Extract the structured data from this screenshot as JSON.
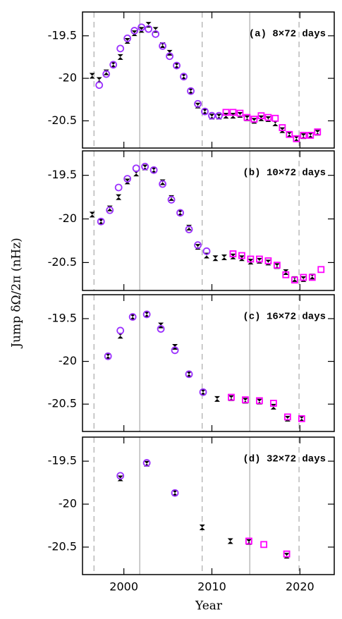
{
  "ylabel": "Jump δΩ/2π (nHz)",
  "xlabel": "Year",
  "chart_data": [
    {
      "type": "scatter",
      "annotation": "(a) 8×72 days",
      "xlim": [
        1995.3,
        2023.9
      ],
      "ylim": [
        -20.82,
        -19.22
      ],
      "xticks": [
        2000,
        2010,
        2020
      ],
      "yticks": [
        -19.5,
        -20,
        -20.5
      ],
      "reference_lines": [
        {
          "x": 1996.6,
          "style": "dashed"
        },
        {
          "x": 2001.8,
          "style": "solid"
        },
        {
          "x": 2008.9,
          "style": "dashed"
        },
        {
          "x": 2014.3,
          "style": "solid"
        },
        {
          "x": 2019.9,
          "style": "dashed"
        }
      ],
      "series": [
        {
          "color": "#000000",
          "marker": "hourglass",
          "x": [
            1996.4,
            1997.2,
            1998.0,
            1998.8,
            1999.6,
            2000.4,
            2001.2,
            2002.0,
            2002.8,
            2003.6,
            2004.4,
            2005.2,
            2006.0,
            2006.8,
            2007.6,
            2008.4,
            2009.2,
            2010.0,
            2010.8,
            2011.6,
            2012.4,
            2013.2,
            2014.0,
            2014.8,
            2015.6,
            2016.4,
            2017.2,
            2018.0,
            2018.8,
            2019.6,
            2020.4,
            2021.2,
            2022.0
          ],
          "values": [
            -19.97,
            -20.02,
            -19.93,
            -19.84,
            -19.75,
            -19.56,
            -19.47,
            -19.43,
            -19.37,
            -19.43,
            -19.61,
            -19.7,
            -19.85,
            -19.98,
            -20.15,
            -20.32,
            -20.39,
            -20.45,
            -20.45,
            -20.44,
            -20.44,
            -20.43,
            -20.47,
            -20.5,
            -20.47,
            -20.48,
            -20.53,
            -20.61,
            -20.66,
            -20.71,
            -20.68,
            -20.67,
            -20.64
          ]
        },
        {
          "color": "#9b30ff",
          "marker": "circle",
          "x": [
            1997.2,
            1998.0,
            1998.8,
            1999.6,
            2000.4,
            2001.2,
            2002.0,
            2002.8,
            2003.6,
            2004.4,
            2005.2,
            2006.0,
            2006.8,
            2007.6,
            2008.4,
            2009.2,
            2010.0,
            2010.8
          ],
          "values": [
            -20.08,
            -19.95,
            -19.84,
            -19.65,
            -19.53,
            -19.44,
            -19.4,
            -19.42,
            -19.48,
            -19.62,
            -19.74,
            -19.85,
            -19.98,
            -20.15,
            -20.3,
            -20.39,
            -20.44,
            -20.44
          ]
        },
        {
          "color": "#ff00ff",
          "marker": "square",
          "x": [
            2011.6,
            2012.4,
            2013.2,
            2014.0,
            2014.8,
            2015.6,
            2016.4,
            2017.2,
            2018.0,
            2018.8,
            2019.6,
            2020.4,
            2021.2,
            2022.0
          ],
          "values": [
            -20.4,
            -20.4,
            -20.41,
            -20.46,
            -20.48,
            -20.44,
            -20.46,
            -20.47,
            -20.58,
            -20.66,
            -20.71,
            -20.67,
            -20.67,
            -20.63
          ]
        }
      ]
    },
    {
      "type": "scatter",
      "annotation": "(b) 10×72 days",
      "xlim": [
        1995.3,
        2023.9
      ],
      "ylim": [
        -20.82,
        -19.22
      ],
      "xticks": [
        2000,
        2010,
        2020
      ],
      "yticks": [
        -19.5,
        -20,
        -20.5
      ],
      "reference_lines": [
        {
          "x": 1996.6,
          "style": "dashed"
        },
        {
          "x": 2001.8,
          "style": "solid"
        },
        {
          "x": 2008.9,
          "style": "dashed"
        },
        {
          "x": 2014.3,
          "style": "solid"
        },
        {
          "x": 2019.9,
          "style": "dashed"
        }
      ],
      "series": [
        {
          "color": "#000000",
          "marker": "hourglass",
          "x": [
            1996.4,
            1997.4,
            1998.4,
            1999.4,
            2000.4,
            2001.4,
            2002.4,
            2003.4,
            2004.4,
            2005.4,
            2006.4,
            2007.4,
            2008.4,
            2009.4,
            2010.4,
            2011.4,
            2012.4,
            2013.4,
            2014.4,
            2015.4,
            2016.4,
            2017.4,
            2018.4,
            2019.4,
            2020.4,
            2021.4
          ],
          "values": [
            -19.95,
            -20.03,
            -19.88,
            -19.75,
            -19.57,
            -19.48,
            -19.41,
            -19.44,
            -19.58,
            -19.76,
            -19.93,
            -20.1,
            -20.32,
            -20.42,
            -20.45,
            -20.44,
            -20.43,
            -20.45,
            -20.49,
            -20.48,
            -20.5,
            -20.54,
            -20.61,
            -20.69,
            -20.69,
            -20.66
          ]
        },
        {
          "color": "#9b30ff",
          "marker": "circle",
          "x": [
            1997.4,
            1998.4,
            1999.4,
            2000.4,
            2001.4,
            2002.4,
            2003.4,
            2004.4,
            2005.4,
            2006.4,
            2007.4,
            2008.4,
            2009.4
          ],
          "values": [
            -20.03,
            -19.9,
            -19.64,
            -19.54,
            -19.42,
            -19.4,
            -19.44,
            -19.6,
            -19.78,
            -19.93,
            -20.12,
            -20.3,
            -20.37
          ]
        },
        {
          "color": "#ff00ff",
          "marker": "square",
          "x": [
            2012.4,
            2013.4,
            2014.4,
            2015.4,
            2016.4,
            2017.4,
            2018.4,
            2019.4,
            2020.4,
            2021.4,
            2022.4
          ],
          "values": [
            -20.4,
            -20.42,
            -20.46,
            -20.46,
            -20.48,
            -20.53,
            -20.64,
            -20.7,
            -20.67,
            -20.67,
            -20.58
          ]
        }
      ]
    },
    {
      "type": "scatter",
      "annotation": "(c) 16×72 days",
      "xlim": [
        1995.3,
        2023.9
      ],
      "ylim": [
        -20.82,
        -19.22
      ],
      "xticks": [
        2000,
        2010,
        2020
      ],
      "yticks": [
        -19.5,
        -20,
        -20.5
      ],
      "reference_lines": [
        {
          "x": 1996.6,
          "style": "dashed"
        },
        {
          "x": 2001.8,
          "style": "solid"
        },
        {
          "x": 2008.9,
          "style": "dashed"
        },
        {
          "x": 2014.3,
          "style": "solid"
        },
        {
          "x": 2019.9,
          "style": "dashed"
        }
      ],
      "series": [
        {
          "color": "#000000",
          "marker": "hourglass",
          "x": [
            1998.2,
            1999.6,
            2001.0,
            2002.6,
            2004.2,
            2005.8,
            2007.4,
            2009.0,
            2010.6,
            2012.2,
            2013.8,
            2015.4,
            2017.0,
            2018.6,
            2020.2
          ],
          "values": [
            -19.94,
            -19.7,
            -19.48,
            -19.45,
            -19.58,
            -19.83,
            -20.15,
            -20.36,
            -20.44,
            -20.43,
            -20.46,
            -20.47,
            -20.53,
            -20.67,
            -20.67
          ]
        },
        {
          "color": "#9b30ff",
          "marker": "circle",
          "x": [
            1998.2,
            1999.6,
            2001.0,
            2002.6,
            2004.2,
            2005.8,
            2007.4,
            2009.0
          ],
          "values": [
            -19.94,
            -19.64,
            -19.48,
            -19.45,
            -19.62,
            -19.87,
            -20.15,
            -20.36
          ]
        },
        {
          "color": "#ff00ff",
          "marker": "square",
          "x": [
            2012.2,
            2013.8,
            2015.4,
            2017.0,
            2018.6,
            2020.2
          ],
          "values": [
            -20.42,
            -20.45,
            -20.46,
            -20.49,
            -20.65,
            -20.67
          ]
        }
      ]
    },
    {
      "type": "scatter",
      "annotation": "(d) 32×72 days",
      "xlim": [
        1995.3,
        2023.9
      ],
      "ylim": [
        -20.82,
        -19.22
      ],
      "xticks": [
        2000,
        2010,
        2020
      ],
      "yticks": [
        -19.5,
        -20,
        -20.5
      ],
      "reference_lines": [
        {
          "x": 1996.6,
          "style": "dashed"
        },
        {
          "x": 2001.8,
          "style": "solid"
        },
        {
          "x": 2008.9,
          "style": "dashed"
        },
        {
          "x": 2014.3,
          "style": "solid"
        },
        {
          "x": 2019.9,
          "style": "dashed"
        }
      ],
      "series": [
        {
          "color": "#000000",
          "marker": "hourglass",
          "x": [
            1999.6,
            2002.6,
            2005.8,
            2008.9,
            2012.1,
            2014.2,
            2018.5
          ],
          "values": [
            -19.7,
            -19.53,
            -19.87,
            -20.27,
            -20.43,
            -20.44,
            -20.6
          ]
        },
        {
          "color": "#9b30ff",
          "marker": "circle",
          "x": [
            1999.6,
            2002.6,
            2005.8
          ],
          "values": [
            -19.67,
            -19.52,
            -19.87
          ]
        },
        {
          "color": "#ff00ff",
          "marker": "square",
          "x": [
            2014.2,
            2015.9,
            2018.5
          ],
          "values": [
            -20.43,
            -20.47,
            -20.58
          ]
        }
      ]
    }
  ]
}
